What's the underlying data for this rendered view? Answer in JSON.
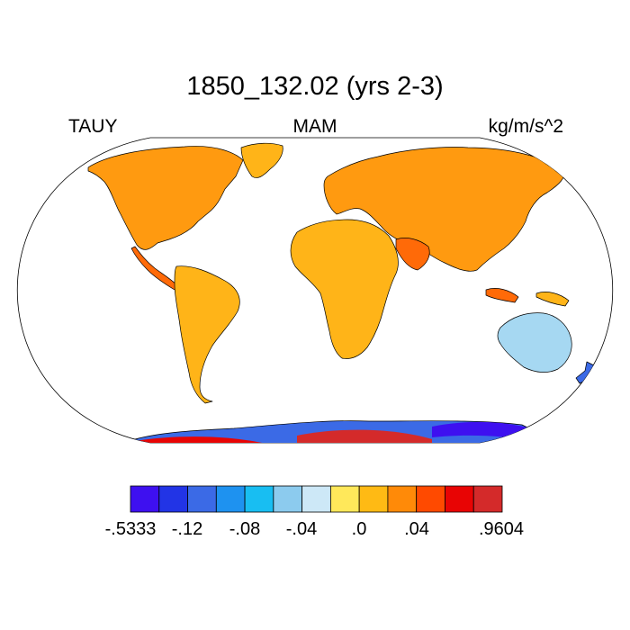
{
  "figure": {
    "title": "1850_132.02 (yrs 2-3)",
    "left_label": "TAUY",
    "center_label": "MAM",
    "right_label": "kg/m/s^2"
  },
  "map": {
    "projection": "robinson",
    "coastlines": true,
    "ocean_fill": "white"
  },
  "colorbar": {
    "orientation": "horizontal",
    "colors": [
      "#3e10f0",
      "#2234e6",
      "#3b6ae6",
      "#1e92f0",
      "#18bef2",
      "#8ccbee",
      "#cde8f7",
      "#ffe85a",
      "#ffba14",
      "#ff8a08",
      "#ff4a00",
      "#e80404",
      "#d42a2a"
    ],
    "tick_labels": [
      "-.5333",
      "-.12",
      "-.08",
      "-.04",
      ".0",
      ".04",
      ".9604"
    ]
  }
}
